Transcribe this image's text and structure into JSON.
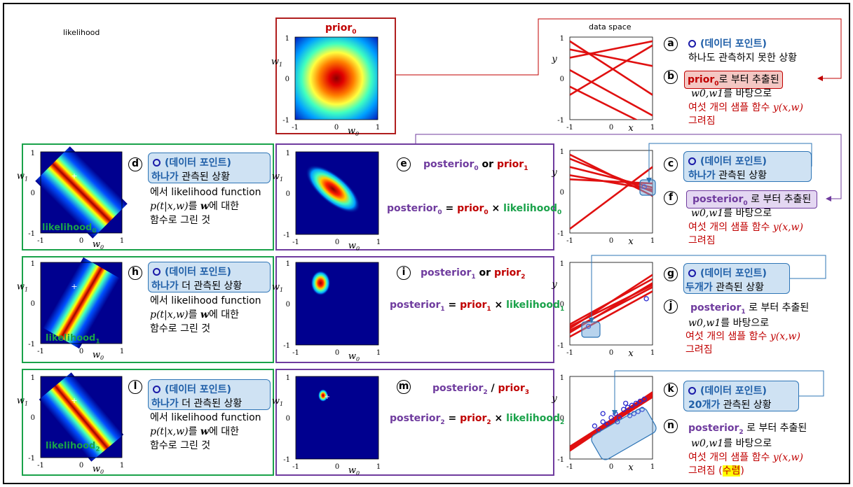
{
  "labels": {
    "likelihood_top": "likelihood",
    "data_space": "data space",
    "prior0": "prior",
    "sub0": "0",
    "sub1": "1",
    "sub2": "2",
    "sub3": "3",
    "w0": "w",
    "w1": "w",
    "x": "x",
    "y": "y",
    "tick_m1": "-1",
    "tick_0": "0",
    "tick_1": "1"
  },
  "letters": [
    "a",
    "b",
    "c",
    "d",
    "e",
    "f",
    "g",
    "h",
    "i",
    "j",
    "k",
    "l",
    "m",
    "n"
  ],
  "texts": {
    "data_point": "(데이터 포인트)",
    "a_line2": "하나도 관측하지 못한 상황",
    "b_head": "prior",
    "b_tail": "로 부터 추출된",
    "w_basis": "를 바탕으로",
    "w_basis_vars": "w0,w1",
    "six_samples": "여섯 개의 샘플 함수",
    "sample_fn": "y(x,w)",
    "drawn": "그려짐",
    "converge": "수렴",
    "c_line2_a": "하나가",
    "c_line2_b": "관측된 상황",
    "g_line2_a": "두개가",
    "k_line2_a": "20개가",
    "h_line2_b": "더 관측된 상황",
    "lik_fn_1": "에서 likelihood function",
    "lik_fn_2_a": "p(t|x,w)",
    "lik_fn_2_b": "를",
    "lik_fn_2_c": "w",
    "lik_fn_2_d": "에 대한",
    "lik_fn_3": "함수로 그린 것",
    "posterior": "posterior",
    "prior": "prior",
    "likelihood": "likelihood",
    "or": "or",
    "slash": "/",
    "from_extracted": "로 부터 추출된",
    "eq": "=",
    "times": "×"
  },
  "colors": {
    "red": "#c00000",
    "green": "#1aa24a",
    "purple": "#6f3b9e",
    "blue": "#1f5fa8",
    "point": "#2a2ad0"
  }
}
